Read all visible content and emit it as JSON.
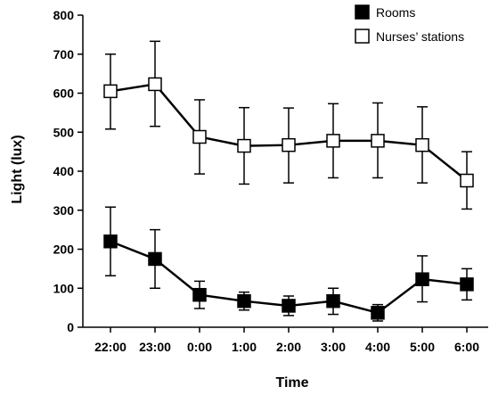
{
  "chart_data": {
    "type": "line",
    "xlabel": "Time",
    "ylabel": "Light (lux)",
    "categories": [
      "22:00",
      "23:00",
      "0:00",
      "1:00",
      "2:00",
      "3:00",
      "4:00",
      "5:00",
      "6:00"
    ],
    "ylim": [
      0,
      800
    ],
    "yticks": [
      0,
      100,
      200,
      300,
      400,
      500,
      600,
      700,
      800
    ],
    "grid": false,
    "legend_position": "top-right",
    "series": [
      {
        "name": "Rooms",
        "marker": "filled-square",
        "color": "#000000",
        "values": [
          220,
          175,
          83,
          67,
          55,
          67,
          37,
          123,
          110
        ],
        "error_upper": [
          308,
          250,
          118,
          90,
          80,
          100,
          58,
          183,
          150
        ],
        "error_lower": [
          132,
          100,
          48,
          44,
          30,
          33,
          16,
          65,
          70
        ]
      },
      {
        "name": "Nurses’ stations",
        "marker": "open-square",
        "color": "#000000",
        "values": [
          605,
          623,
          488,
          465,
          467,
          478,
          478,
          467,
          376
        ],
        "error_upper": [
          700,
          733,
          583,
          563,
          562,
          573,
          575,
          565,
          450
        ],
        "error_lower": [
          508,
          515,
          393,
          367,
          370,
          383,
          383,
          370,
          303
        ]
      }
    ]
  }
}
